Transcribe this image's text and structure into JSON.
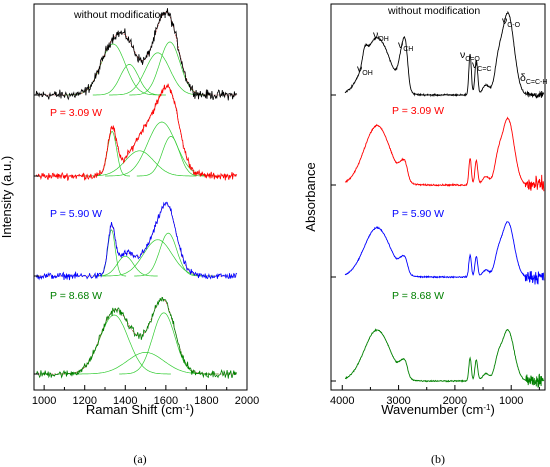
{
  "chart_data": [
    {
      "type": "line",
      "panel_label": "(a)",
      "xlabel": "Raman Shift (cm",
      "xlabel_sup": "-1",
      "xlabel_tail": ")",
      "ylabel": "Intensity (a.u.)",
      "xlim": [
        950,
        2000
      ],
      "xticks": [
        1000,
        1200,
        1400,
        1600,
        1800,
        2000
      ],
      "xtick_labels": [
        "1000",
        "1200",
        "1400",
        "1600",
        "1800",
        "2000"
      ],
      "series": [
        {
          "name": "without modification",
          "color": "#000000",
          "peaks": [
            [
              1340,
              60,
              0.75
            ],
            [
              1420,
              45,
              0.45
            ],
            [
              1560,
              60,
              0.62
            ],
            [
              1620,
              50,
              0.78
            ]
          ]
        },
        {
          "name": "P = 3.09 W",
          "color": "#ff0000",
          "peaks": [
            [
              1335,
              22,
              0.62
            ],
            [
              1470,
              70,
              0.35
            ],
            [
              1580,
              70,
              0.75
            ],
            [
              1625,
              42,
              0.55
            ]
          ]
        },
        {
          "name": "P = 5.90 W",
          "color": "#0000ff",
          "peaks": [
            [
              1332,
              18,
              0.7
            ],
            [
              1400,
              40,
              0.3
            ],
            [
              1560,
              70,
              0.55
            ],
            [
              1612,
              42,
              0.65
            ]
          ]
        },
        {
          "name": "P = 8.68 W",
          "color": "#008000",
          "peaks": [
            [
              1345,
              70,
              0.82
            ],
            [
              1500,
              90,
              0.3
            ],
            [
              1590,
              55,
              0.85
            ]
          ]
        }
      ],
      "fit_color": "#33cc33"
    },
    {
      "type": "line",
      "panel_label": "(b)",
      "xlabel": "Wavenumber (cm",
      "xlabel_sup": "-1",
      "xlabel_tail": ")",
      "ylabel": "Absorbance",
      "xlim": [
        4200,
        400
      ],
      "xticks": [
        4000,
        3000,
        2000,
        1000
      ],
      "xtick_labels": [
        "4000",
        "3000",
        "2000",
        "1000"
      ],
      "series": [
        {
          "name": "without modification",
          "color": "#000000"
        },
        {
          "name": "P = 3.09 W",
          "color": "#ff0000"
        },
        {
          "name": "P = 5.90 W",
          "color": "#0000ff"
        },
        {
          "name": "P = 8.68 W",
          "color": "#008000"
        }
      ],
      "band_labels": [
        {
          "main": "ν",
          "sub": "OH"
        },
        {
          "main": "ν",
          "sub": "OH"
        },
        {
          "main": "ν",
          "sub": "CH"
        },
        {
          "main": "ν",
          "sub": "C=O"
        },
        {
          "main": "ν",
          "sub": "C=C"
        },
        {
          "main": "ν",
          "sub": "C-O"
        },
        {
          "main": "δ",
          "sub": "C=C-H"
        }
      ]
    }
  ]
}
